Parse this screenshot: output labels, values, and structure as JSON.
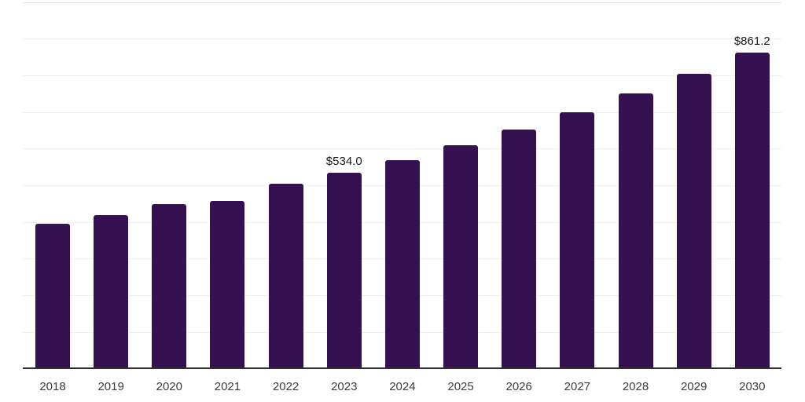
{
  "chart_data": {
    "type": "bar",
    "title": "",
    "xlabel": "",
    "ylabel": "",
    "categories": [
      "2018",
      "2019",
      "2020",
      "2021",
      "2022",
      "2023",
      "2024",
      "2025",
      "2026",
      "2027",
      "2028",
      "2029",
      "2030"
    ],
    "values": [
      394.4,
      419.3,
      449.0,
      457.1,
      504.3,
      534.0,
      568.6,
      609.4,
      652.8,
      699.3,
      750.1,
      803.7,
      861.2
    ],
    "annotations": [
      {
        "category": "2023",
        "text": "$534.0"
      },
      {
        "category": "2030",
        "text": "$861.2"
      }
    ],
    "ylim": [
      0,
      1000
    ],
    "grid_step": 100,
    "grid": "horizontal-only",
    "legend": "none",
    "colors": {
      "bar": "#351151",
      "grid": "#f1f1f1",
      "top_grid": "#e5e5e5",
      "axis_line": "#2d2d2d",
      "tick_label": "#3c3c3c",
      "value_label": "#1b1b1b",
      "background": "#ffffff"
    }
  }
}
